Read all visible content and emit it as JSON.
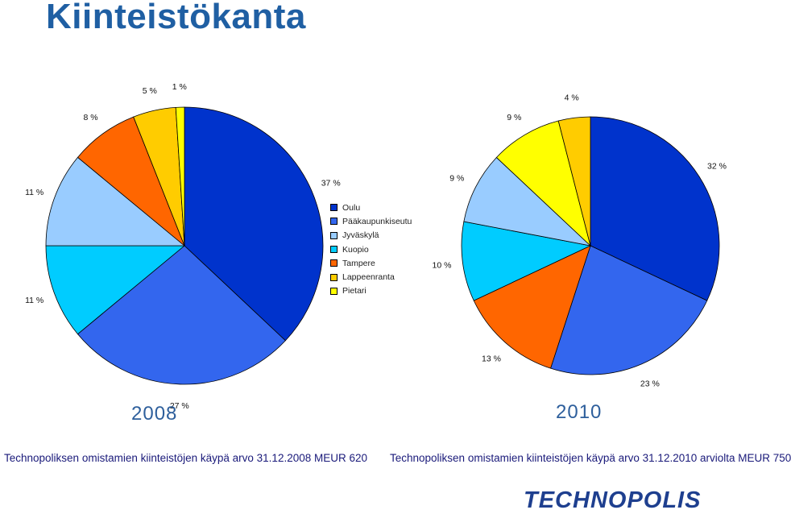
{
  "page": {
    "title": "Kiinteistökanta",
    "brand": "TECHNOPOLIS"
  },
  "legend": {
    "items": [
      {
        "label": "Oulu",
        "color": "#0033cc"
      },
      {
        "label": "Pääkaupunkiseutu",
        "color": "#3366ee"
      },
      {
        "label": "Jyväskylä",
        "color": "#99ccff"
      },
      {
        "label": "Kuopio",
        "color": "#00ccff"
      },
      {
        "label": "Tampere",
        "color": "#ff6600"
      },
      {
        "label": "Lappeenranta",
        "color": "#ffcc00"
      },
      {
        "label": "Pietari",
        "color": "#ffff00"
      }
    ]
  },
  "chart_data": [
    {
      "type": "pie",
      "title": "2008",
      "caption": "Technopoliksen omistamien kiinteistöjen käypä arvo 31.12.2008 MEUR 620",
      "slices": [
        {
          "category": "Oulu",
          "value": 37,
          "label": "37 %",
          "color": "#0033cc"
        },
        {
          "category": "Pääkaupunkiseutu",
          "value": 27,
          "label": "27 %",
          "color": "#3366ee"
        },
        {
          "category": "Kuopio",
          "value": 11,
          "label": "11 %",
          "color": "#00ccff"
        },
        {
          "category": "Jyväskylä",
          "value": 11,
          "label": "11 %",
          "color": "#99ccff"
        },
        {
          "category": "Tampere",
          "value": 8,
          "label": "8 %",
          "color": "#ff6600"
        },
        {
          "category": "Lappeenranta",
          "value": 5,
          "label": "5 %",
          "color": "#ffcc00"
        },
        {
          "category": "Pietari",
          "value": 1,
          "label": "1 %",
          "color": "#ffff00"
        }
      ]
    },
    {
      "type": "pie",
      "title": "2010",
      "caption": "Technopoliksen omistamien kiinteistöjen käypä arvo 31.12.2010 arviolta MEUR 750",
      "slices": [
        {
          "category": "Oulu",
          "value": 32,
          "label": "32 %",
          "color": "#0033cc"
        },
        {
          "category": "Pääkaupunkiseutu",
          "value": 23,
          "label": "23 %",
          "color": "#3366ee"
        },
        {
          "category": "Tampere",
          "value": 13,
          "label": "13 %",
          "color": "#ff6600"
        },
        {
          "category": "Kuopio",
          "value": 10,
          "label": "10 %",
          "color": "#00ccff"
        },
        {
          "category": "Jyväskylä",
          "value": 9,
          "label": "9 %",
          "color": "#99ccff"
        },
        {
          "category": "Pietari",
          "value": 9,
          "label": "9 %",
          "color": "#ffff00"
        },
        {
          "category": "Lappeenranta",
          "value": 4,
          "label": "4 %",
          "color": "#ffcc00"
        }
      ]
    }
  ]
}
